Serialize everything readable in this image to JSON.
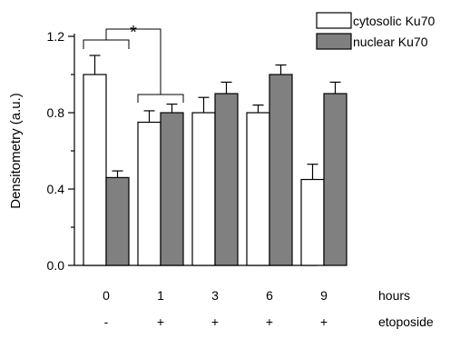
{
  "chart_data": {
    "type": "bar",
    "title": "",
    "xlabel": "",
    "ylabel": "Densitometry (a.u.)",
    "ylim": [
      0.0,
      1.2
    ],
    "yticks": [
      "0.0",
      "0.4",
      "0.8",
      "1.2"
    ],
    "grid": false,
    "legend_position": "top-right",
    "categories": [
      "0",
      "1",
      "3",
      "6",
      "9"
    ],
    "treatment": [
      "-",
      "+",
      "+",
      "+",
      "+"
    ],
    "row_labels": {
      "time": "hours",
      "treatment": "etoposide"
    },
    "series": [
      {
        "name": "cytosolic Ku70",
        "color": "#ffffff",
        "values": [
          1.0,
          0.75,
          0.8,
          0.8,
          0.45
        ],
        "errors": [
          0.1,
          0.06,
          0.08,
          0.04,
          0.08
        ]
      },
      {
        "name": "nuclear Ku70",
        "color": "#808080",
        "values": [
          0.46,
          0.8,
          0.9,
          1.0,
          0.9
        ],
        "errors": [
          0.035,
          0.045,
          0.06,
          0.05,
          0.06
        ]
      }
    ],
    "annotation": {
      "text": "*",
      "compares": [
        "0",
        "1"
      ]
    }
  }
}
